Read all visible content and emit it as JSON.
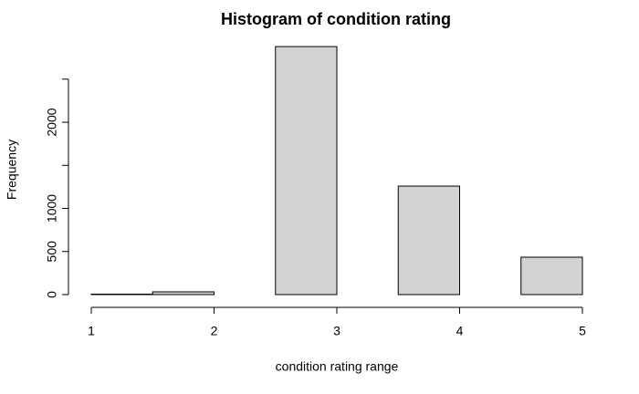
{
  "chart_data": {
    "type": "histogram",
    "title": "Histogram of condition rating",
    "x_label": "condition rating range",
    "y_label": "Frequency",
    "bins": [
      1,
      1.5,
      2,
      2.5,
      3,
      3.5,
      4,
      4.5,
      5
    ],
    "values": [
      5,
      32,
      0,
      2878,
      0,
      1259,
      0,
      434
    ],
    "color": "#d3d3d3",
    "xlim": [
      1,
      5
    ],
    "xticks": [
      1,
      2,
      3,
      4,
      5
    ],
    "ylim": [
      0,
      2900
    ],
    "yticks": [
      0,
      500,
      1000,
      {
        "value": 1500,
        "label": null
      },
      2000,
      {
        "value": 2500,
        "label": null
      }
    ]
  }
}
